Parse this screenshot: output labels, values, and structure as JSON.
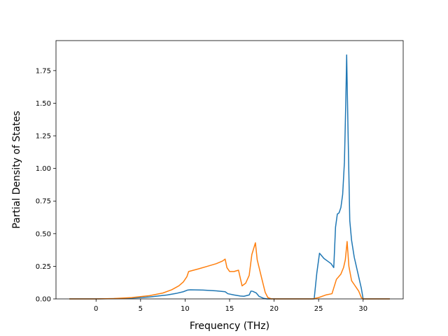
{
  "chart_data": {
    "type": "line",
    "title": "",
    "xlabel": "Frequency (THz)",
    "ylabel": "Partial Density of States",
    "xlim": [
      -4.5,
      34.5
    ],
    "ylim": [
      0,
      1.98
    ],
    "xticks": [
      0,
      5,
      10,
      15,
      20,
      25,
      30
    ],
    "xtick_labels": [
      "0",
      "5",
      "10",
      "15",
      "20",
      "25",
      "30"
    ],
    "yticks": [
      0,
      0.25,
      0.5,
      0.75,
      1.0,
      1.25,
      1.5,
      1.75
    ],
    "ytick_labels": [
      "0.00",
      "0.25",
      "0.50",
      "0.75",
      "1.00",
      "1.25",
      "1.50",
      "1.75"
    ],
    "grid": false,
    "legend": "none",
    "series": [
      {
        "color": "#1f77b4",
        "x": [
          -3,
          0,
          2,
          4,
          6,
          8,
          9,
          9.8,
          10.3,
          10.6,
          12,
          13.5,
          14.5,
          14.8,
          15.5,
          16.2,
          16.6,
          17.2,
          17.4,
          17.6,
          18.0,
          18.3,
          18.8,
          19.2,
          19.5,
          24.5,
          24.8,
          25.1,
          25.6,
          26.0,
          26.4,
          26.7,
          26.9,
          27.1,
          27.3,
          27.5,
          27.7,
          27.9,
          28.05,
          28.15,
          28.3,
          28.5,
          28.7,
          29.0,
          29.4,
          29.8,
          30,
          33
        ],
        "y": [
          0,
          0,
          0.002,
          0.006,
          0.015,
          0.03,
          0.042,
          0.055,
          0.068,
          0.07,
          0.068,
          0.062,
          0.055,
          0.04,
          0.03,
          0.022,
          0.02,
          0.03,
          0.06,
          0.058,
          0.045,
          0.02,
          0.005,
          0,
          0,
          0,
          0.2,
          0.35,
          0.31,
          0.29,
          0.27,
          0.24,
          0.55,
          0.65,
          0.66,
          0.7,
          0.8,
          1.05,
          1.5,
          1.87,
          1.3,
          0.6,
          0.45,
          0.32,
          0.2,
          0.08,
          0,
          0
        ]
      },
      {
        "color": "#ff7f0e",
        "x": [
          -3,
          0,
          2,
          4,
          6,
          7.5,
          8.5,
          9.3,
          9.8,
          10.2,
          10.4,
          11.5,
          12.5,
          13.5,
          14.2,
          14.5,
          14.7,
          15.0,
          15.5,
          16.0,
          16.4,
          16.8,
          17.2,
          17.5,
          17.9,
          18.1,
          18.6,
          19.0,
          19.3,
          19.7,
          24.3,
          25,
          25.8,
          26.5,
          27.0,
          27.5,
          27.8,
          28.0,
          28.2,
          28.4,
          28.7,
          29.0,
          29.5,
          29.8,
          30,
          33
        ],
        "y": [
          0,
          0,
          0.003,
          0.01,
          0.025,
          0.045,
          0.07,
          0.1,
          0.13,
          0.17,
          0.21,
          0.23,
          0.25,
          0.27,
          0.29,
          0.305,
          0.24,
          0.21,
          0.21,
          0.22,
          0.1,
          0.12,
          0.18,
          0.34,
          0.43,
          0.3,
          0.16,
          0.05,
          0.01,
          0,
          0,
          0.01,
          0.03,
          0.04,
          0.15,
          0.19,
          0.24,
          0.3,
          0.44,
          0.25,
          0.14,
          0.11,
          0.06,
          0.01,
          0,
          0
        ]
      }
    ]
  }
}
